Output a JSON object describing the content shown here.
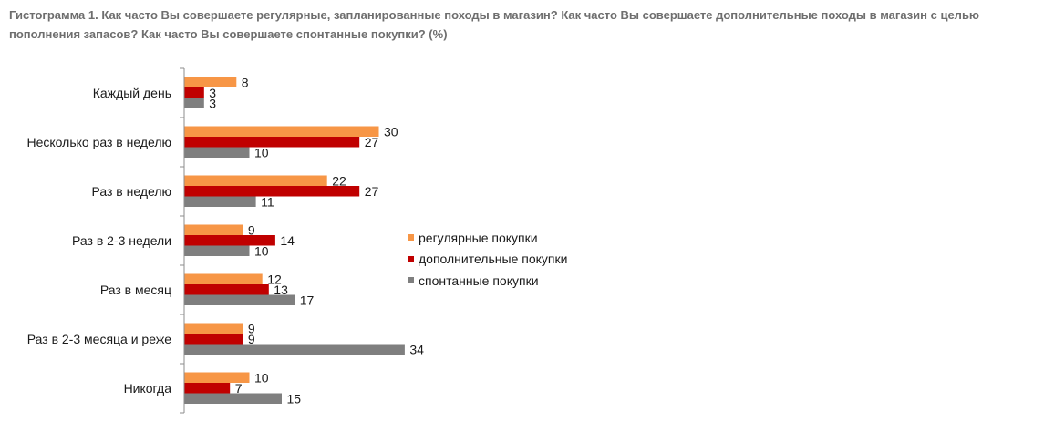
{
  "caption": "Гистограмма 1. Как часто Вы совершаете регулярные, запланированные походы в магазин? Как часто Вы совершаете дополнительные походы в магазин с целью пополнения запасов? Как часто Вы совершаете спонтанные покупки? (%)",
  "chart_data": {
    "type": "bar",
    "orientation": "horizontal",
    "title": "Гистограмма 1. Как часто Вы совершаете регулярные, запланированные походы в магазин? Как часто Вы совершаете дополнительные походы в магазин с целью пополнения запасов? Как часто Вы совершаете спонтанные покупки? (%)",
    "categories": [
      "Каждый день",
      "Несколько раз в неделю",
      "Раз в неделю",
      "Раз в 2-3 недели",
      "Раз в месяц",
      "Раз в 2-3 месяца и реже",
      "Никогда"
    ],
    "series": [
      {
        "name": "регулярные покупки",
        "color": "#f79646",
        "values": [
          8,
          30,
          22,
          9,
          12,
          9,
          10
        ]
      },
      {
        "name": "дополнительные покупки",
        "color": "#c00000",
        "values": [
          3,
          27,
          27,
          14,
          13,
          9,
          7
        ]
      },
      {
        "name": "спонтанные покупки",
        "color": "#7f7f7f",
        "values": [
          3,
          10,
          11,
          10,
          17,
          34,
          15
        ]
      }
    ],
    "xlim": [
      0,
      50
    ],
    "grid": false,
    "legend_position": "right",
    "data_labels": true
  }
}
